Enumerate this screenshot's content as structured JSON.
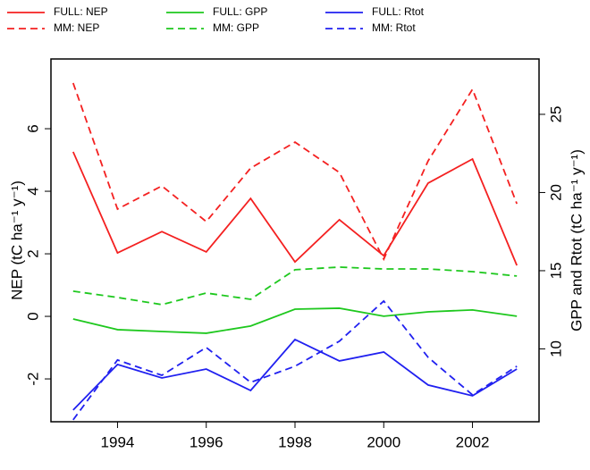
{
  "chart_data": {
    "type": "line",
    "y_label": "NEP (tC ha⁻¹ y⁻¹)",
    "y2_label": "GPP and Rtot (tC ha⁻¹ y⁻¹)",
    "x": [
      1993,
      1994,
      1995,
      1996,
      1997,
      1998,
      1999,
      2000,
      2001,
      2002,
      2003
    ],
    "xlim": [
      1992.5,
      2003.5
    ],
    "xticks": [
      1994,
      1996,
      1998,
      2000,
      2002
    ],
    "ylim": [
      -3.37,
      8.23
    ],
    "yticks": [
      -2,
      0,
      2,
      4,
      6
    ],
    "y2lim": [
      5.34,
      28.54
    ],
    "y2ticks": [
      10,
      15,
      20,
      25
    ],
    "series": [
      {
        "name": "FULL: NEP",
        "color": "#f42020",
        "linestyle": "solid",
        "axis": "y",
        "values": [
          5.26,
          2.03,
          2.71,
          2.06,
          3.77,
          1.74,
          3.09,
          1.94,
          4.26,
          5.03,
          1.63
        ]
      },
      {
        "name": "MM: NEP",
        "color": "#f42020",
        "linestyle": "dashed",
        "axis": "y",
        "values": [
          7.46,
          3.43,
          4.17,
          3.03,
          4.74,
          5.57,
          4.6,
          1.83,
          4.97,
          7.26,
          3.6
        ]
      },
      {
        "name": "FULL: GPP",
        "color": "#1ec81e",
        "linestyle": "solid",
        "axis": "y2",
        "values": [
          11.91,
          11.23,
          11.11,
          11.0,
          11.46,
          12.54,
          12.6,
          12.09,
          12.37,
          12.49,
          12.09
        ]
      },
      {
        "name": "MM: GPP",
        "color": "#1ec81e",
        "linestyle": "dashed",
        "axis": "y2",
        "values": [
          13.69,
          13.29,
          12.83,
          13.57,
          13.17,
          15.06,
          15.23,
          15.11,
          15.11,
          14.94,
          14.66
        ]
      },
      {
        "name": "FULL: Rtot",
        "color": "#2020f0",
        "linestyle": "solid",
        "axis": "y2",
        "values": [
          6.09,
          9.0,
          8.14,
          8.71,
          7.34,
          10.6,
          9.23,
          9.8,
          7.69,
          7.0,
          8.71
        ]
      },
      {
        "name": "MM: Rtot",
        "color": "#2020f0",
        "linestyle": "dashed",
        "axis": "y2",
        "values": [
          5.46,
          9.29,
          8.31,
          10.09,
          7.86,
          8.89,
          10.49,
          13.06,
          9.46,
          7.06,
          8.89
        ]
      }
    ]
  }
}
